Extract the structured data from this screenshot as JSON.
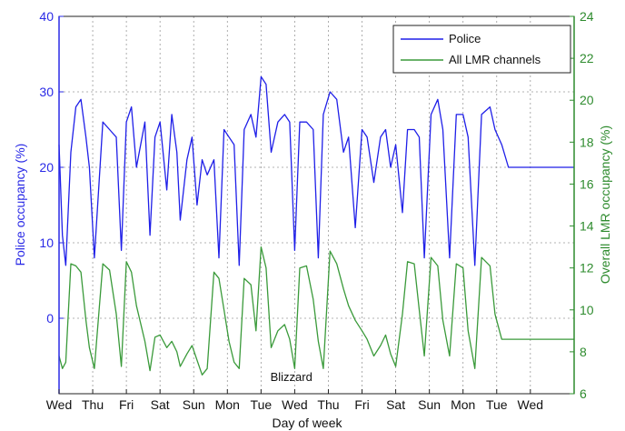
{
  "chart_data": {
    "type": "line",
    "xlabel": "Day of week",
    "ylabel_left": "Police occupancy (%)",
    "ylabel_right": "Overall LMR occupancy (%)",
    "x_tick_labels": [
      "Wed",
      "Thu",
      "Fri",
      "Sat",
      "Sun",
      "Mon",
      "Tue",
      "Wed",
      "Thu",
      "Fri",
      "Sat",
      "Sun",
      "Mon",
      "Tue",
      "Wed"
    ],
    "xlim": [
      0,
      15.3
    ],
    "ylim_left": [
      -10,
      40
    ],
    "yticks_left": [
      0,
      10,
      20,
      30,
      40
    ],
    "ylim_right": [
      6,
      24
    ],
    "yticks_right": [
      6,
      8,
      10,
      12,
      14,
      16,
      18,
      20,
      22,
      24
    ],
    "grid": true,
    "legend_position": "top-right",
    "annotation": {
      "text": "Blizzard",
      "x": 6.9,
      "y_left": -7.7
    },
    "series": [
      {
        "name": "Police",
        "axis": "left",
        "color": "#1f1fe8",
        "x": [
          0,
          0.1,
          0.2,
          0.35,
          0.5,
          0.65,
          0.8,
          0.9,
          1.05,
          1.3,
          1.5,
          1.7,
          1.85,
          2.0,
          2.15,
          2.3,
          2.55,
          2.7,
          2.85,
          3.0,
          3.2,
          3.35,
          3.5,
          3.6,
          3.8,
          3.95,
          4.1,
          4.25,
          4.4,
          4.6,
          4.75,
          4.9,
          5.05,
          5.2,
          5.35,
          5.5,
          5.7,
          5.85,
          6.0,
          6.15,
          6.3,
          6.5,
          6.7,
          6.85,
          7.0,
          7.15,
          7.35,
          7.55,
          7.7,
          7.85,
          8.05,
          8.25,
          8.45,
          8.6,
          8.8,
          9.0,
          9.15,
          9.35,
          9.55,
          9.7,
          9.85,
          10.0,
          10.2,
          10.35,
          10.55,
          10.7,
          10.85,
          11.05,
          11.25,
          11.4,
          11.6,
          11.8,
          12.0,
          12.15,
          12.35,
          12.55,
          12.8,
          12.95,
          13.15,
          13.35,
          13.55,
          13.75,
          13.9,
          14.05,
          14.25,
          14.45,
          14.6,
          14.8,
          15.0,
          15.2,
          15.3
        ],
        "values": [
          23,
          11,
          7,
          22,
          28,
          29,
          24,
          20,
          8,
          26,
          25,
          24,
          9,
          26,
          28,
          20,
          26,
          11,
          24,
          26,
          17,
          27,
          22,
          13,
          21,
          24,
          15,
          21,
          19,
          21,
          8,
          25,
          24,
          23,
          7,
          25,
          27,
          24,
          32,
          31,
          22,
          26,
          27,
          26,
          9,
          26,
          26,
          25,
          8,
          27,
          30,
          29,
          22,
          24,
          12,
          25,
          24,
          18,
          24,
          25,
          20,
          23,
          14,
          25,
          25,
          24,
          8,
          27,
          29,
          25,
          8,
          27,
          27,
          24,
          7,
          27,
          28,
          25,
          23,
          20,
          20,
          20,
          20,
          20,
          20,
          20,
          20,
          20,
          20,
          20,
          20
        ]
      },
      {
        "name": "All LMR channels",
        "axis": "right",
        "color": "#3a9a3a",
        "x": [
          0,
          0.1,
          0.2,
          0.35,
          0.5,
          0.65,
          0.8,
          0.9,
          1.05,
          1.3,
          1.5,
          1.7,
          1.85,
          2.0,
          2.15,
          2.3,
          2.55,
          2.7,
          2.85,
          3.0,
          3.2,
          3.35,
          3.5,
          3.6,
          3.8,
          3.95,
          4.1,
          4.25,
          4.4,
          4.6,
          4.75,
          4.9,
          5.05,
          5.2,
          5.35,
          5.5,
          5.7,
          5.85,
          6.0,
          6.15,
          6.3,
          6.5,
          6.7,
          6.85,
          7.0,
          7.15,
          7.35,
          7.55,
          7.7,
          7.85,
          8.05,
          8.25,
          8.45,
          8.6,
          8.8,
          9.0,
          9.15,
          9.35,
          9.55,
          9.7,
          9.85,
          10.0,
          10.2,
          10.35,
          10.55,
          10.7,
          10.85,
          11.05,
          11.25,
          11.4,
          11.6,
          11.8,
          12.0,
          12.15,
          12.35,
          12.55,
          12.8,
          12.95,
          13.15,
          13.35,
          13.55,
          13.75,
          13.9,
          14.05,
          14.25,
          14.45,
          14.6,
          14.8,
          15.0,
          15.2,
          15.3
        ],
        "values": [
          7.8,
          7.2,
          7.5,
          12.2,
          12.1,
          11.8,
          9.5,
          8.2,
          7.2,
          12.2,
          11.9,
          9.8,
          7.3,
          12.3,
          11.8,
          10.2,
          8.5,
          7.1,
          8.7,
          8.8,
          8.2,
          8.5,
          8.0,
          7.3,
          7.9,
          8.3,
          7.6,
          6.9,
          7.2,
          11.8,
          11.5,
          10.0,
          8.5,
          7.5,
          7.2,
          11.5,
          11.2,
          9.0,
          13.0,
          12.0,
          8.2,
          9.0,
          9.3,
          8.6,
          7.2,
          12.0,
          12.1,
          10.5,
          8.5,
          7.2,
          12.8,
          12.2,
          11.0,
          10.2,
          9.5,
          9.0,
          8.6,
          7.8,
          8.3,
          8.8,
          7.9,
          7.3,
          9.8,
          12.3,
          12.2,
          10.0,
          7.8,
          12.5,
          12.1,
          9.5,
          7.8,
          12.2,
          12.0,
          9.0,
          7.2,
          12.5,
          12.1,
          9.8,
          8.6,
          8.6,
          8.6,
          8.6,
          8.6,
          8.6,
          8.6,
          8.6,
          8.6,
          8.6,
          8.6,
          8.6,
          8.6
        ]
      }
    ]
  }
}
